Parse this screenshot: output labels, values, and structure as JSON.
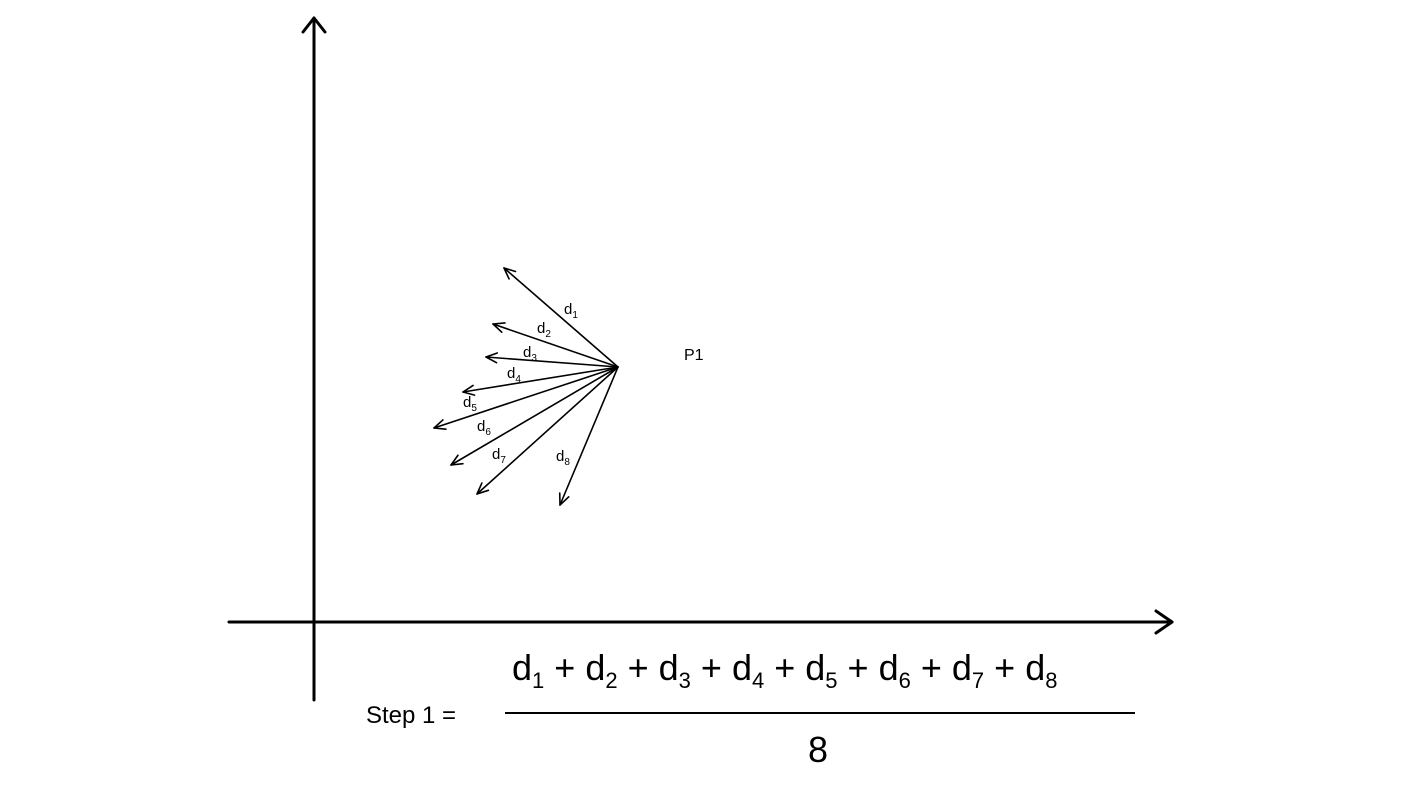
{
  "diagram": {
    "point_label": "P1",
    "vectors": [
      {
        "name": "d",
        "sub": "1"
      },
      {
        "name": "d",
        "sub": "2"
      },
      {
        "name": "d",
        "sub": "3"
      },
      {
        "name": "d",
        "sub": "4"
      },
      {
        "name": "d",
        "sub": "5"
      },
      {
        "name": "d",
        "sub": "6"
      },
      {
        "name": "d",
        "sub": "7"
      },
      {
        "name": "d",
        "sub": "8"
      }
    ]
  },
  "formula": {
    "label": "Step 1 =",
    "numerator_terms": [
      {
        "name": "d",
        "sub": "1"
      },
      {
        "name": "d",
        "sub": "2"
      },
      {
        "name": "d",
        "sub": "3"
      },
      {
        "name": "d",
        "sub": "4"
      },
      {
        "name": "d",
        "sub": "5"
      },
      {
        "name": "d",
        "sub": "6"
      },
      {
        "name": "d",
        "sub": "7"
      },
      {
        "name": "d",
        "sub": "8"
      }
    ],
    "operator": "+",
    "denominator": "8"
  }
}
